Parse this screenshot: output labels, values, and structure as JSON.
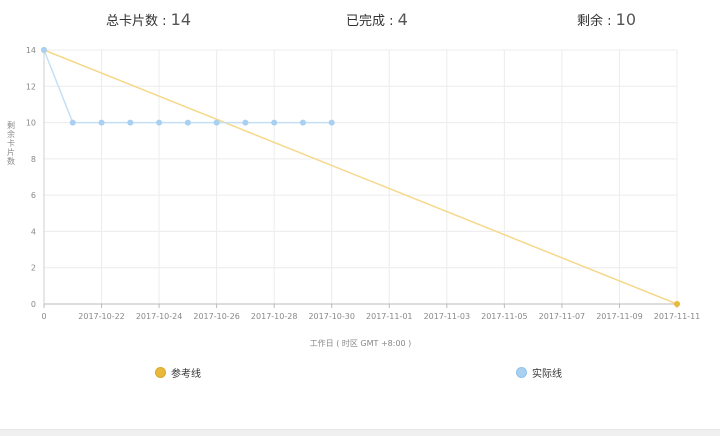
{
  "summary": {
    "total_label": "总卡片数 : ",
    "total_value": "14",
    "done_label": "已完成 : ",
    "done_value": "4",
    "remaining_label": "剩余 : ",
    "remaining_value": "10"
  },
  "chart_data": {
    "type": "line",
    "xlabel": "工作日 ( 时区 GMT +8:00 )",
    "ylabel": "剩余卡片数",
    "ylim": [
      0,
      14
    ],
    "y_ticks": [
      "0",
      "2",
      "4",
      "6",
      "8",
      "10",
      "12",
      "14"
    ],
    "x_tick_labels": [
      "0",
      "2017-10-22",
      "2017-10-24",
      "2017-10-26",
      "2017-10-28",
      "2017-10-30",
      "2017-11-01",
      "2017-11-03",
      "2017-11-05",
      "2017-11-07",
      "2017-11-09",
      "2017-11-11"
    ],
    "x_range_days": [
      0,
      22
    ],
    "grid": true,
    "legend_position": "bottom",
    "series": [
      {
        "name": "参考线",
        "color": "#f5d88a",
        "marker_color": "#e8b93a",
        "x": [
          0,
          22
        ],
        "values": [
          14,
          0
        ]
      },
      {
        "name": "实际线",
        "color": "#c5e0f5",
        "marker_color": "#a9d0f0",
        "x": [
          0,
          1,
          2,
          3,
          4,
          5,
          6,
          7,
          8,
          9,
          10
        ],
        "values": [
          14,
          10,
          10,
          10,
          10,
          10,
          10,
          10,
          10,
          10,
          10
        ]
      }
    ]
  }
}
